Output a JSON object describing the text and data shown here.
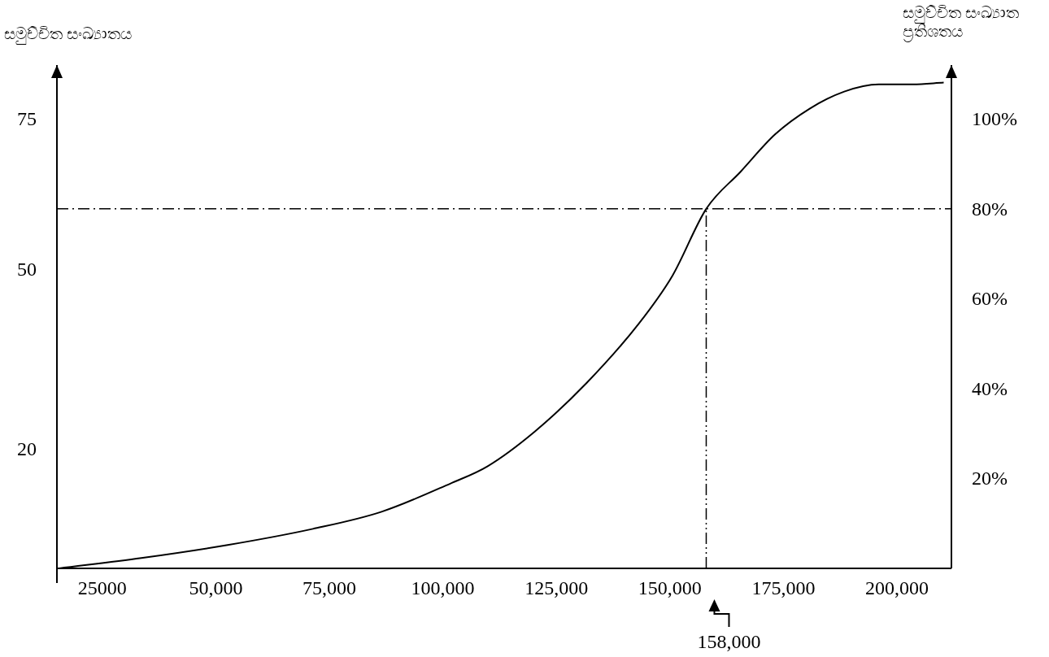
{
  "chart_data": {
    "type": "line",
    "ylabel": "සමුච්චිත සංඛ්‍යාතය",
    "y2label": "සමුච්චිත සංඛ්‍යාත\nප්‍රතිශතය",
    "xlim": [
      15000,
      212000
    ],
    "xticks": [
      {
        "value": 25000,
        "label": "25000"
      },
      {
        "value": 50000,
        "label": "50,000"
      },
      {
        "value": 75000,
        "label": "75,000"
      },
      {
        "value": 100000,
        "label": "100,000"
      },
      {
        "value": 125000,
        "label": "125,000"
      },
      {
        "value": 150000,
        "label": "150,000"
      },
      {
        "value": 175000,
        "label": "175,000"
      },
      {
        "value": 200000,
        "label": "200,000"
      }
    ],
    "ylim": [
      0,
      84
    ],
    "yticks": [
      20,
      50,
      75
    ],
    "y2lim": [
      0,
      112
    ],
    "y2ticks": [
      {
        "value": 20,
        "label": "20%"
      },
      {
        "value": 40,
        "label": "40%"
      },
      {
        "value": 60,
        "label": "60%"
      },
      {
        "value": 80,
        "label": "80%"
      },
      {
        "value": 100,
        "label": "100%"
      }
    ],
    "series": [
      {
        "type": "line",
        "axis": "y2",
        "color": "#000000",
        "x": [
          15500,
          33600,
          52600,
          71400,
          86500,
          101700,
          109800,
          120300,
          131700,
          143100,
          150600,
          158000,
          165600,
          173200,
          180800,
          188400,
          196000,
          203500,
          210300
        ],
        "values": [
          0,
          2.3,
          5.2,
          8.8,
          12.6,
          18.9,
          22.7,
          30.5,
          41.3,
          54.4,
          65.2,
          80,
          88.3,
          96.6,
          102.3,
          106.1,
          107.7,
          107.7,
          108.1
        ]
      }
    ],
    "ref_lines": [
      {
        "axis": "y2",
        "value": 80,
        "label": null,
        "color": "#000000",
        "line_style": "dashdot"
      },
      {
        "axis": "x",
        "value": 158000,
        "label": "158,000",
        "color": "#000000",
        "line_style": "dashdotdot"
      }
    ],
    "grid": false,
    "marker": "none",
    "line_style": "solid"
  }
}
